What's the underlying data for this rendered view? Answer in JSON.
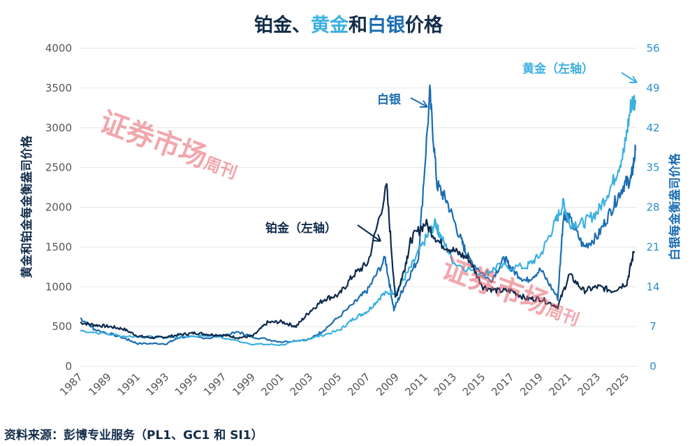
{
  "title": {
    "part1": "铂金、",
    "part2": "黄金",
    "part3": "和",
    "part4": "白银",
    "part5": "价格"
  },
  "source": "资料来源：彭博专业服务（PL1、GC1 和 SI1）",
  "watermark": "证券市场周刊",
  "colors": {
    "platinum": "#0e2a4c",
    "gold": "#3cb0e0",
    "silver": "#1a6db3",
    "title": "#132c4a",
    "watermark": "#e8606a"
  },
  "chart_data": {
    "type": "line",
    "ylabel": "黄金和铂金每金衡盎司价格",
    "y2label": "白银每金衡盎司价格",
    "ylim": [
      0,
      4000
    ],
    "y2lim": [
      0,
      56
    ],
    "yticks": [
      0,
      500,
      1000,
      1500,
      2000,
      2500,
      3000,
      3500,
      4000
    ],
    "y2ticks": [
      0,
      7,
      14,
      21,
      28,
      35,
      42,
      49,
      56
    ],
    "xticks": [
      "1987",
      "1989",
      "1991",
      "1993",
      "1995",
      "1997",
      "1999",
      "2001",
      "2003",
      "2005",
      "2007",
      "2009",
      "2011",
      "2013",
      "2015",
      "2017",
      "2019",
      "2021",
      "2023",
      "2025"
    ],
    "grid": true,
    "annotations": {
      "platinum": "铂金（左轴）",
      "silver": "白银",
      "gold": "黄金（左轴）"
    },
    "series": [
      {
        "name": "铂金",
        "axis": "left",
        "x": [
          1987,
          1988,
          1989,
          1990,
          1991,
          1992,
          1993,
          1994,
          1995,
          1996,
          1997,
          1998,
          1999,
          2000,
          2001,
          2002,
          2003,
          2004,
          2005,
          2006,
          2007,
          2008.3,
          2008.9,
          2009.5,
          2010,
          2011,
          2012,
          2013,
          2014,
          2015,
          2016,
          2017,
          2018,
          2019,
          2020.2,
          2021,
          2022,
          2023,
          2024,
          2025,
          2025.5
        ],
        "values": [
          550,
          520,
          500,
          470,
          380,
          360,
          370,
          400,
          420,
          400,
          390,
          360,
          380,
          550,
          560,
          500,
          700,
          850,
          900,
          1150,
          1300,
          2250,
          850,
          1200,
          1600,
          1800,
          1550,
          1450,
          1350,
          1000,
          950,
          950,
          850,
          850,
          750,
          1150,
          950,
          1000,
          950,
          1050,
          1450
        ]
      },
      {
        "name": "黄金",
        "axis": "left",
        "x": [
          1987,
          1990,
          1993,
          1996,
          1999,
          2001,
          2003,
          2005,
          2006,
          2007,
          2008,
          2009,
          2010,
          2011,
          2011.7,
          2012,
          2013,
          2015,
          2016,
          2018,
          2019,
          2020,
          2020.6,
          2021,
          2022,
          2023,
          2024,
          2024.8,
          2025.3,
          2025.6
        ],
        "values": [
          450,
          380,
          360,
          390,
          280,
          270,
          350,
          450,
          600,
          700,
          900,
          950,
          1250,
          1600,
          1800,
          1650,
          1300,
          1150,
          1250,
          1250,
          1400,
          1800,
          2050,
          1800,
          1800,
          1950,
          2300,
          2700,
          3300,
          3350
        ]
      },
      {
        "name": "白银",
        "axis": "right",
        "x": [
          1987,
          1988,
          1990,
          1991,
          1993,
          1994,
          1996,
          1998,
          1999,
          2001,
          2003,
          2004,
          2006,
          2007,
          2008.2,
          2008.8,
          2009.5,
          2010.5,
          2011.3,
          2011.8,
          2012.5,
          2013.5,
          2014,
          2015.5,
          2016.5,
          2017,
          2018,
          2019,
          2020.2,
          2020.6,
          2021,
          2022,
          2023,
          2024,
          2024.8,
          2025.3,
          2025.6
        ],
        "values": [
          8.5,
          6.5,
          5,
          4,
          4,
          5.2,
          5,
          6,
          5.2,
          4.3,
          4.8,
          6.5,
          11,
          13.5,
          19,
          10,
          14,
          19,
          48,
          32,
          29,
          22,
          19,
          15,
          19,
          17,
          15,
          17,
          12,
          27,
          26,
          21,
          23,
          28,
          32,
          33,
          38
        ]
      }
    ]
  }
}
